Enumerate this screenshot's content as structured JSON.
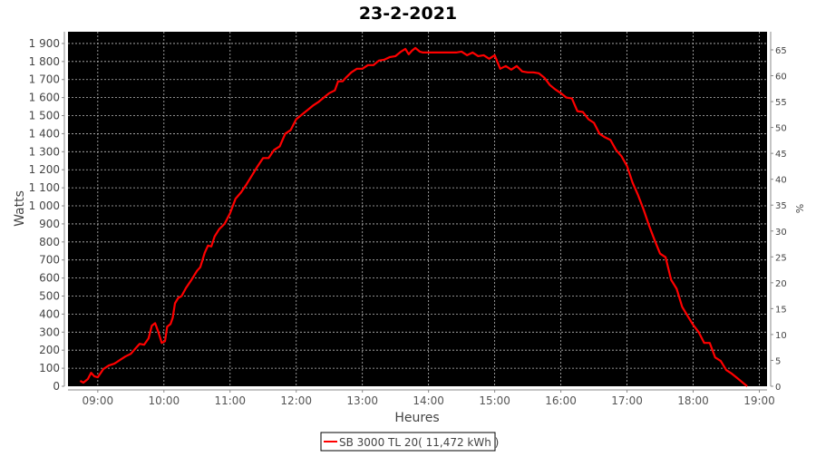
{
  "chart_data": {
    "type": "line",
    "title": "23-2-2021",
    "xlabel": "Heures",
    "ylabel": "Watts",
    "y2label": "%",
    "xlim": [
      "08:33",
      "19:07"
    ],
    "ylim": [
      0,
      1965
    ],
    "y2lim": [
      0,
      68.5
    ],
    "xticks": [
      "09:00",
      "10:00",
      "11:00",
      "12:00",
      "13:00",
      "14:00",
      "15:00",
      "16:00",
      "17:00",
      "18:00",
      "19:00"
    ],
    "yticks": [
      0,
      100,
      200,
      300,
      400,
      500,
      600,
      700,
      800,
      900,
      1000,
      1100,
      1200,
      1300,
      1400,
      1500,
      1600,
      1700,
      1800,
      1900
    ],
    "yticklabels": [
      "0",
      "100",
      "200",
      "300",
      "400",
      "500",
      "600",
      "700",
      "800",
      "900",
      "1 000",
      "1 100",
      "1 200",
      "1 300",
      "1 400",
      "1 500",
      "1 600",
      "1 700",
      "1 800",
      "1 900"
    ],
    "y2ticks": [
      "0",
      "5",
      "10",
      "15",
      "20",
      "25",
      "30",
      "35",
      "40",
      "45",
      "50",
      "55",
      "60",
      "65"
    ],
    "grid": true,
    "background": "#000000",
    "legend_position": "bottom",
    "series": [
      {
        "name": "SB 3000 TL 20( 11,472 kWh )",
        "color": "#ff0000",
        "x": [
          "08:44",
          "08:47",
          "08:51",
          "08:54",
          "08:57",
          "09:00",
          "09:05",
          "09:10",
          "09:15",
          "09:20",
          "09:25",
          "09:30",
          "09:35",
          "09:38",
          "09:42",
          "09:46",
          "09:49",
          "09:52",
          "09:55",
          "09:58",
          "10:01",
          "10:03",
          "10:06",
          "10:08",
          "10:10",
          "10:13",
          "10:16",
          "10:20",
          "10:25",
          "10:30",
          "10:33",
          "10:37",
          "10:40",
          "10:43",
          "10:46",
          "10:50",
          "10:55",
          "11:00",
          "11:05",
          "11:10",
          "11:15",
          "11:20",
          "11:25",
          "11:30",
          "11:35",
          "11:40",
          "11:45",
          "11:50",
          "11:55",
          "12:00",
          "12:05",
          "12:10",
          "12:15",
          "12:20",
          "12:25",
          "12:30",
          "12:35",
          "12:38",
          "12:42",
          "12:45",
          "12:50",
          "12:55",
          "13:00",
          "13:05",
          "13:10",
          "13:15",
          "13:20",
          "13:25",
          "13:30",
          "13:35",
          "13:39",
          "13:42",
          "13:45",
          "13:48",
          "13:52",
          "13:55",
          "14:00",
          "14:10",
          "14:20",
          "14:25",
          "14:30",
          "14:35",
          "14:40",
          "14:45",
          "14:50",
          "14:55",
          "15:00",
          "15:05",
          "15:10",
          "15:15",
          "15:20",
          "15:25",
          "15:30",
          "15:35",
          "15:40",
          "15:45",
          "15:50",
          "15:55",
          "16:00",
          "16:05",
          "16:10",
          "16:15",
          "16:20",
          "16:25",
          "16:30",
          "16:35",
          "16:40",
          "16:45",
          "16:50",
          "16:55",
          "17:00",
          "17:05",
          "17:10",
          "17:15",
          "17:20",
          "17:25",
          "17:30",
          "17:35",
          "17:40",
          "17:45",
          "17:50",
          "17:55",
          "18:00",
          "18:05",
          "18:10",
          "18:15",
          "18:20",
          "18:25",
          "18:30",
          "18:35",
          "18:40",
          "18:45",
          "18:49"
        ],
        "values": [
          30,
          20,
          40,
          75,
          55,
          50,
          95,
          115,
          125,
          145,
          165,
          180,
          215,
          235,
          230,
          265,
          335,
          350,
          300,
          240,
          250,
          330,
          345,
          380,
          460,
          490,
          500,
          545,
          590,
          640,
          660,
          740,
          780,
          775,
          830,
          870,
          900,
          960,
          1040,
          1075,
          1120,
          1170,
          1220,
          1265,
          1265,
          1310,
          1330,
          1400,
          1420,
          1480,
          1505,
          1530,
          1555,
          1575,
          1600,
          1625,
          1640,
          1690,
          1690,
          1710,
          1740,
          1760,
          1760,
          1780,
          1780,
          1805,
          1810,
          1825,
          1830,
          1855,
          1870,
          1840,
          1860,
          1875,
          1855,
          1850,
          1850,
          1850,
          1850,
          1850,
          1855,
          1835,
          1850,
          1830,
          1835,
          1815,
          1835,
          1760,
          1775,
          1755,
          1775,
          1745,
          1740,
          1740,
          1735,
          1710,
          1670,
          1645,
          1625,
          1600,
          1595,
          1525,
          1520,
          1480,
          1460,
          1400,
          1380,
          1365,
          1310,
          1275,
          1220,
          1130,
          1060,
          980,
          890,
          810,
          735,
          715,
          590,
          540,
          440,
          390,
          340,
          300,
          240,
          240,
          160,
          140,
          90,
          70,
          45,
          20,
          0
        ]
      }
    ]
  }
}
